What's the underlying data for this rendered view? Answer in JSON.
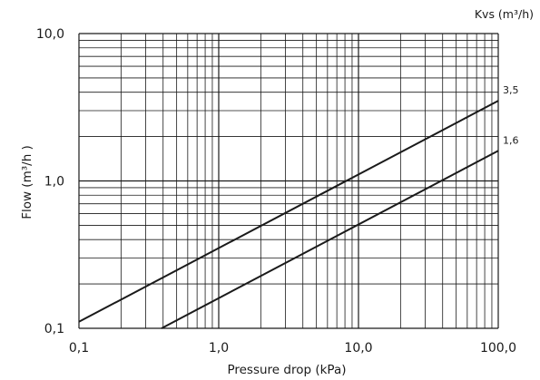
{
  "chart_data": {
    "type": "line",
    "title": "",
    "xlabel": "Pressure drop (kPa)",
    "ylabel": "Flow (m³/h )",
    "legend_title": "Kvs (m³/h)",
    "xscale": "log",
    "yscale": "log",
    "xlim": [
      0.1,
      100
    ],
    "ylim": [
      0.1,
      10
    ],
    "grid": true,
    "xticks": [
      0.1,
      1,
      10,
      100
    ],
    "xtick_labels": [
      "0,1",
      "1,0",
      "10,0",
      "100,0"
    ],
    "yticks": [
      0.1,
      1,
      10
    ],
    "ytick_labels": [
      "0,1",
      "1,0",
      "10,0"
    ],
    "series": [
      {
        "name": "3,5",
        "kvs": 3.5,
        "x": [
          0.1,
          100
        ],
        "y": [
          0.1107,
          3.5
        ]
      },
      {
        "name": "1,6",
        "kvs": 1.6,
        "x": [
          0.39,
          100
        ],
        "y": [
          0.1,
          1.6
        ]
      }
    ]
  },
  "colors": {
    "line": "#1a1a1a",
    "grid": "#1a1a1a",
    "text": "#1a1a1a"
  }
}
